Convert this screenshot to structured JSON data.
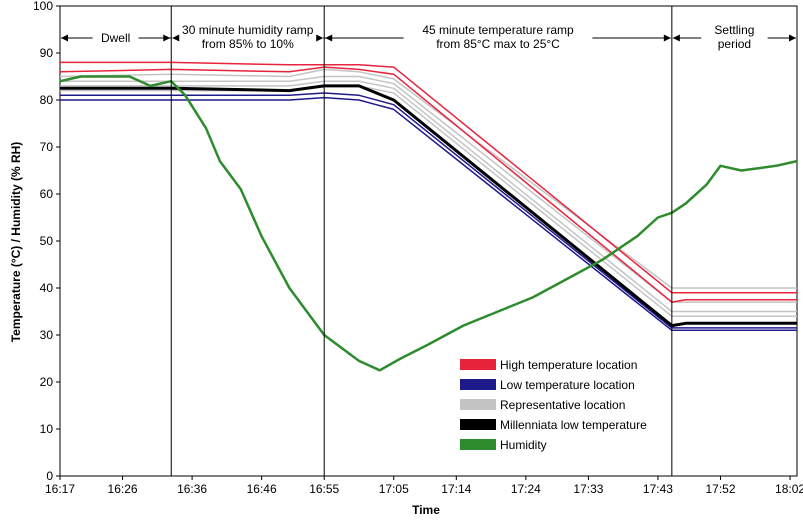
{
  "chart_data": {
    "type": "line",
    "title": "",
    "xlabel": "Time",
    "ylabel": "Temperature (°C) / Humidity (% RH)",
    "ylim": [
      0,
      100
    ],
    "xlim": [
      "16:17",
      "18:03"
    ],
    "yticks": [
      0,
      10,
      20,
      30,
      40,
      50,
      60,
      70,
      80,
      90,
      100
    ],
    "xticks": [
      "16:17",
      "16:26",
      "16:36",
      "16:46",
      "16:55",
      "17:05",
      "17:14",
      "17:24",
      "17:33",
      "17:43",
      "17:52",
      "18:02"
    ],
    "grid": false,
    "phase_lines": [
      "16:33",
      "16:55",
      "17:45"
    ],
    "annotations": [
      {
        "lines": [
          "Dwell"
        ],
        "from": "16:17",
        "to": "16:33"
      },
      {
        "lines": [
          "30 minute humidity ramp",
          "from 85% to 10%"
        ],
        "from": "16:33",
        "to": "16:55"
      },
      {
        "lines": [
          "45 minute temperature ramp",
          "from 85°C max to 25°C"
        ],
        "from": "16:55",
        "to": "17:45"
      },
      {
        "lines": [
          "Settling",
          "period"
        ],
        "from": "17:45",
        "to": "18:03"
      }
    ],
    "legend": {
      "position": "lower-center",
      "entries": [
        {
          "name": "High temperature location",
          "color": "#e8243c"
        },
        {
          "name": "Low temperature location",
          "color": "#1f1a8c"
        },
        {
          "name": "Representative location",
          "color": "#c4c4c4"
        },
        {
          "name": "Millenniata low temperature",
          "color": "#000000"
        },
        {
          "name": "Humidity",
          "color": "#2e8b2e"
        }
      ]
    },
    "series": [
      {
        "name": "High temperature location",
        "color": "#e8243c",
        "x": [
          "16:17",
          "16:33",
          "16:50",
          "16:55",
          "17:00",
          "17:05",
          "17:45",
          "17:47",
          "18:03"
        ],
        "y": [
          88,
          88,
          87.5,
          87.5,
          87.5,
          87,
          39,
          39,
          39
        ]
      },
      {
        "name": "High temperature location",
        "color": "#e8243c",
        "x": [
          "16:17",
          "16:33",
          "16:50",
          "16:55",
          "17:00",
          "17:05",
          "17:45",
          "17:47",
          "18:03"
        ],
        "y": [
          86,
          86.5,
          86,
          87,
          86.5,
          85.5,
          37,
          37.5,
          37.5
        ]
      },
      {
        "name": "Low temperature location",
        "color": "#1f1a8c",
        "x": [
          "16:17",
          "16:33",
          "16:50",
          "16:55",
          "17:00",
          "17:05",
          "17:45",
          "17:47",
          "18:03"
        ],
        "y": [
          81,
          81,
          81,
          81.5,
          81,
          79,
          31.5,
          31.5,
          31.5
        ]
      },
      {
        "name": "Low temperature location",
        "color": "#1f1a8c",
        "x": [
          "16:17",
          "16:33",
          "16:50",
          "16:55",
          "17:00",
          "17:05",
          "17:45",
          "17:47",
          "18:03"
        ],
        "y": [
          80,
          80,
          80,
          80.5,
          80,
          78,
          31,
          31,
          31
        ]
      },
      {
        "name": "Representative location",
        "color": "#c4c4c4",
        "x": [
          "16:17",
          "16:33",
          "16:50",
          "16:55",
          "17:00",
          "17:05",
          "17:45",
          "17:47",
          "18:03"
        ],
        "y": [
          85,
          85.5,
          85,
          86.5,
          86,
          84.5,
          40,
          40,
          40
        ]
      },
      {
        "name": "Representative location",
        "color": "#c4c4c4",
        "x": [
          "16:17",
          "16:33",
          "16:50",
          "16:55",
          "17:00",
          "17:05",
          "17:45",
          "17:47",
          "18:03"
        ],
        "y": [
          84,
          84,
          84,
          85,
          85,
          83.5,
          37,
          37,
          37
        ]
      },
      {
        "name": "Representative location",
        "color": "#c4c4c4",
        "x": [
          "16:17",
          "16:33",
          "16:50",
          "16:55",
          "17:00",
          "17:05",
          "17:45",
          "17:47",
          "18:03"
        ],
        "y": [
          83,
          83,
          83,
          84,
          84,
          82.5,
          35,
          35,
          35
        ]
      },
      {
        "name": "Representative location",
        "color": "#c4c4c4",
        "x": [
          "16:17",
          "16:33",
          "16:50",
          "16:55",
          "17:00",
          "17:05",
          "17:45",
          "17:47",
          "18:03"
        ],
        "y": [
          82,
          82,
          82,
          83,
          83,
          81.5,
          34,
          34,
          34
        ]
      },
      {
        "name": "Millenniata low temperature",
        "color": "#000000",
        "x": [
          "16:17",
          "16:33",
          "16:50",
          "16:55",
          "17:00",
          "17:05",
          "17:45",
          "17:47",
          "18:03"
        ],
        "y": [
          82.5,
          82.5,
          82,
          83,
          83,
          80,
          32,
          32.5,
          32.5
        ]
      },
      {
        "name": "Humidity",
        "color": "#2e8b2e",
        "x": [
          "16:17",
          "16:20",
          "16:23",
          "16:27",
          "16:30",
          "16:33",
          "16:35",
          "16:38",
          "16:40",
          "16:43",
          "16:46",
          "16:50",
          "16:55",
          "17:00",
          "17:03",
          "17:06",
          "17:10",
          "17:15",
          "17:20",
          "17:25",
          "17:30",
          "17:35",
          "17:40",
          "17:43",
          "17:45",
          "17:47",
          "17:50",
          "17:52",
          "17:55",
          "18:00",
          "18:03"
        ],
        "y": [
          84,
          85,
          85,
          85,
          83,
          84,
          81,
          74,
          67,
          61,
          51,
          40,
          30,
          24.5,
          22.5,
          25,
          28,
          32,
          35,
          38,
          42,
          46,
          51,
          55,
          56,
          58,
          62,
          66,
          65,
          66,
          67
        ]
      }
    ]
  }
}
